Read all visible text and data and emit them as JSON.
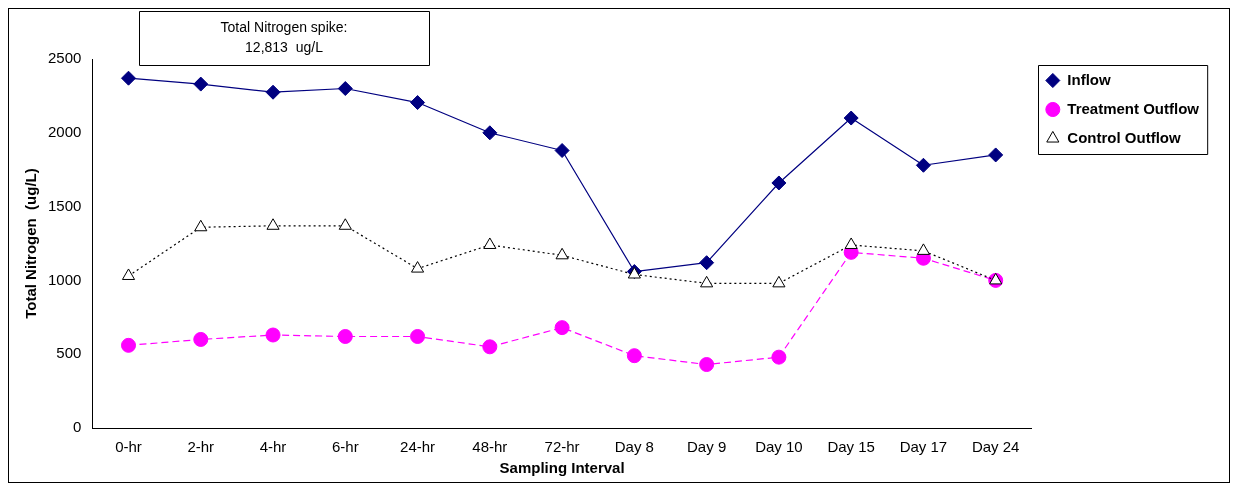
{
  "chart_data": {
    "type": "line",
    "xlabel": "Sampling Interval",
    "ylabel": "Total Nitrogen  (ug/L)",
    "categories": [
      "0-hr",
      "2-hr",
      "4-hr",
      "6-hr",
      "24-hr",
      "48-hr",
      "72-hr",
      "Day 8",
      "Day 9",
      "Day 10",
      "Day 15",
      "Day 17",
      "Day 24"
    ],
    "series": [
      {
        "name": "Inflow",
        "color": "#000080",
        "marker": "diamond",
        "line_style": "solid",
        "values": [
          2370,
          2330,
          2275,
          2300,
          2205,
          2000,
          1880,
          1060,
          1120,
          1660,
          2100,
          1780,
          1850
        ]
      },
      {
        "name": "Treatment Outflow",
        "color": "#ff00ff",
        "marker": "circle",
        "line_style": "dashed",
        "values": [
          560,
          600,
          630,
          620,
          620,
          550,
          680,
          490,
          430,
          480,
          1190,
          1150,
          1000
        ]
      },
      {
        "name": "Control Outflow",
        "color": "#000000",
        "marker": "triangle",
        "line_style": "dotted",
        "values": [
          1030,
          1360,
          1370,
          1370,
          1080,
          1240,
          1170,
          1040,
          980,
          980,
          1240,
          1200,
          1000
        ]
      }
    ],
    "ylim": [
      0,
      2500
    ],
    "yticks": [
      0,
      500,
      1000,
      1500,
      2000,
      2500
    ],
    "grid": false,
    "legend": "top right",
    "annotations": [
      "Total Nitrogen spike:\n12,813  ug/L"
    ]
  }
}
